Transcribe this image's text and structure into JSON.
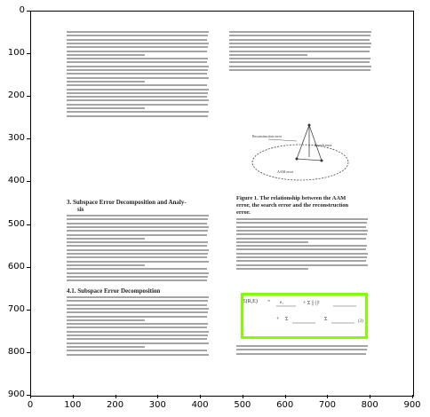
{
  "axes": {
    "x_ticks": [
      "0",
      "100",
      "200",
      "300",
      "400",
      "500",
      "600",
      "700",
      "800",
      "900"
    ],
    "y_ticks": [
      "0",
      "100",
      "200",
      "300",
      "400",
      "500",
      "600",
      "700",
      "800",
      "900"
    ],
    "xlim": [
      0,
      900
    ],
    "ylim": [
      900,
      0
    ]
  },
  "document": {
    "section_3_heading": "3.  Subspace Error Decomposition and Analy-",
    "section_3_heading_cont": "sis",
    "subsection_heading": "4.1.  Subspace Error Decomposition",
    "figure_caption_line1": "Figure 1. The relationship between the AAM",
    "figure_caption_line2": "error, the search error and the reconstruction",
    "figure_caption_line3": "error.",
    "figure_labels": {
      "a": "Reconstruction error",
      "b": "Search error",
      "c": "AAM error"
    },
    "highlight_color": "#7fff00"
  }
}
